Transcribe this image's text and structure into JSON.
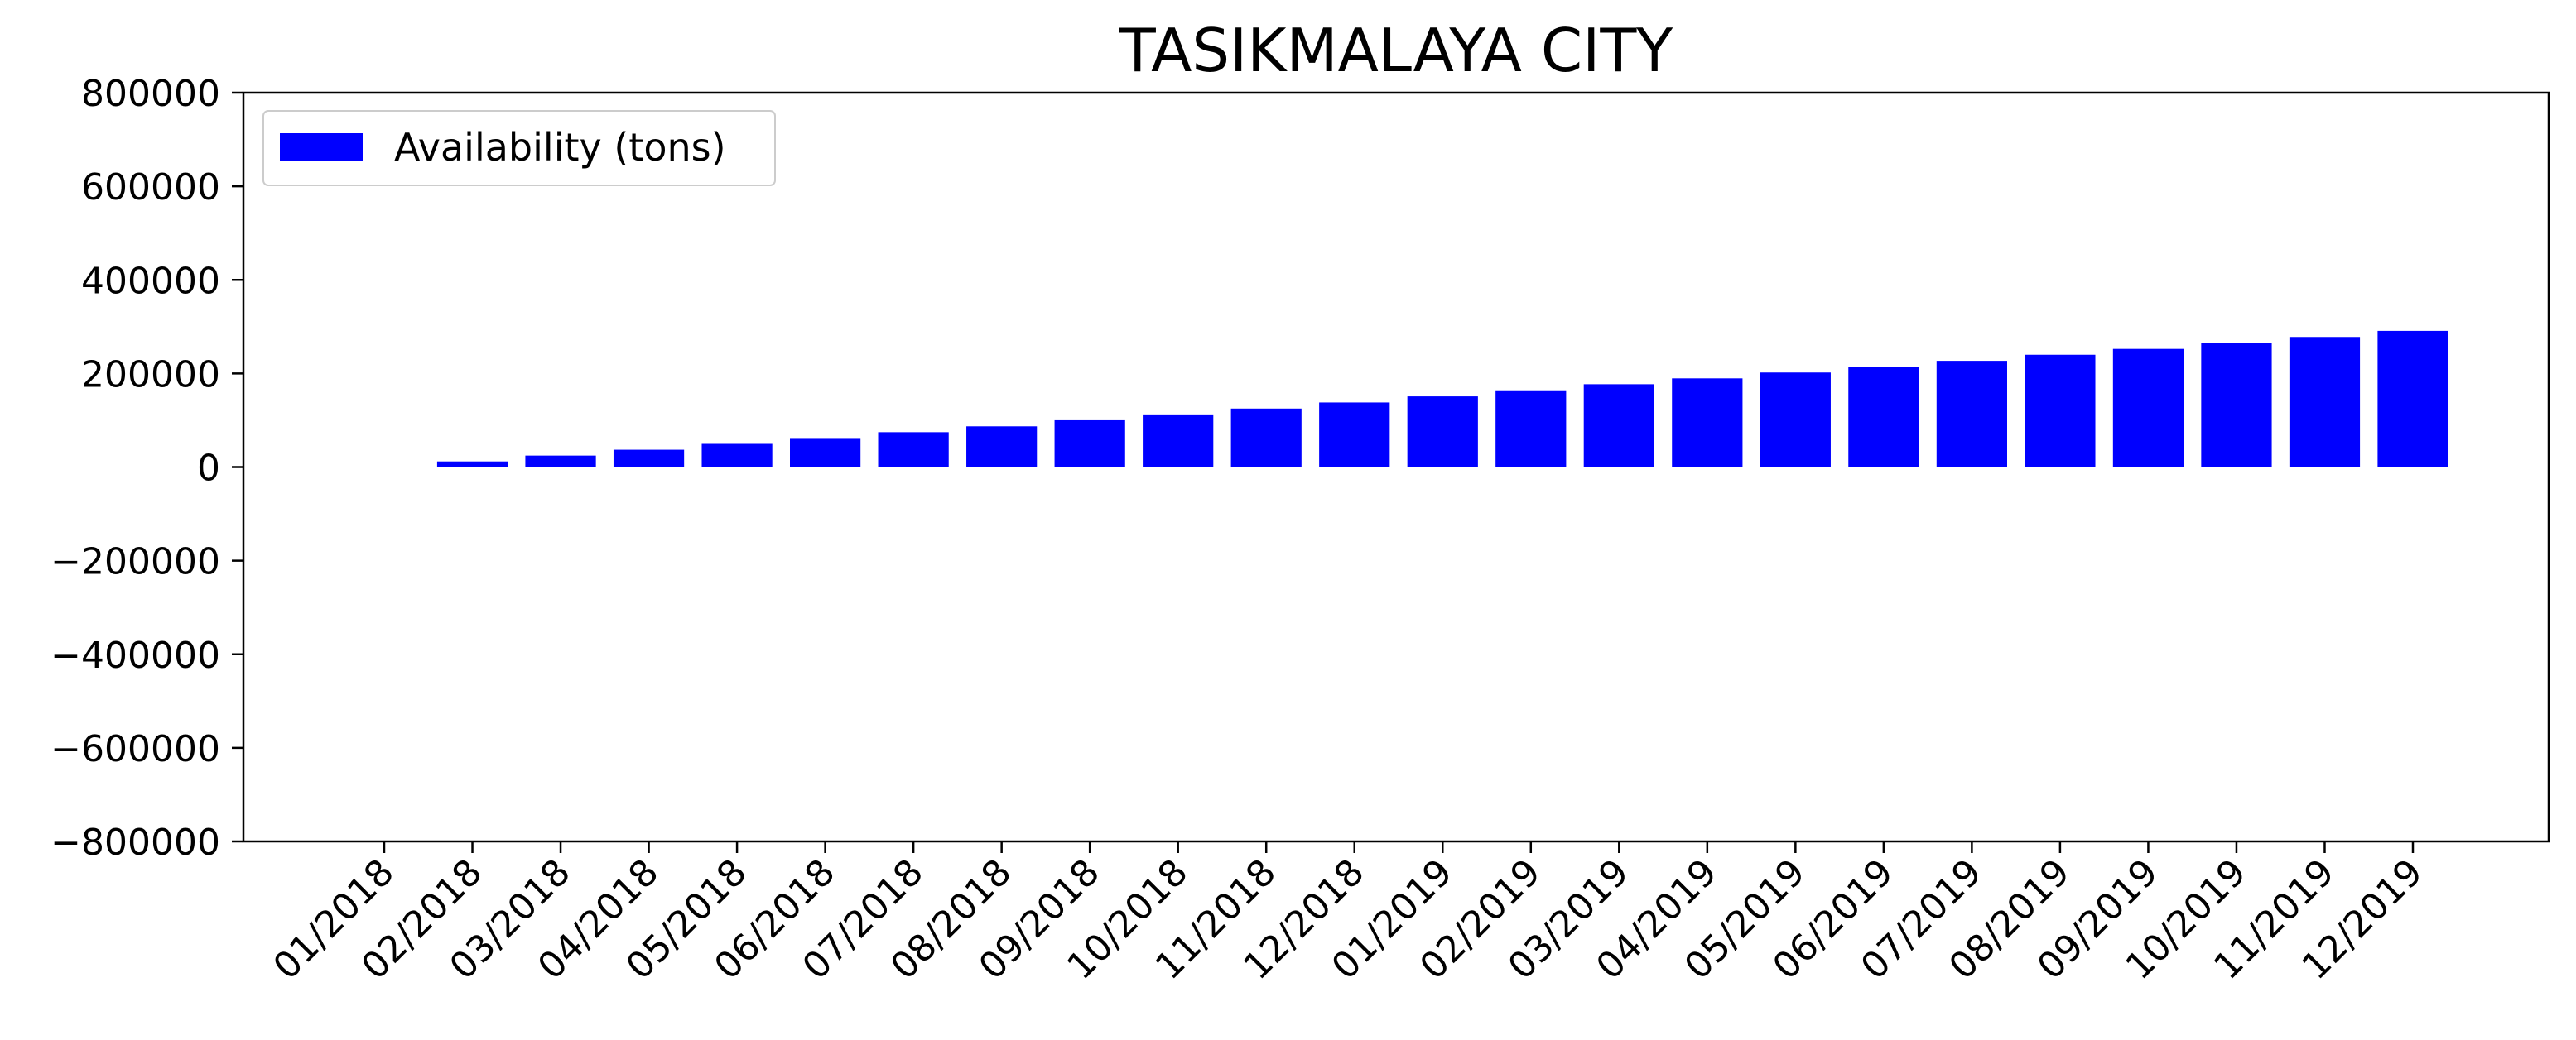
{
  "chart_data": {
    "type": "bar",
    "title": "TASIKMALAYA CITY",
    "xlabel": "",
    "ylabel": "",
    "categories": [
      "01/2018",
      "02/2018",
      "03/2018",
      "04/2018",
      "05/2018",
      "06/2018",
      "07/2018",
      "08/2018",
      "09/2018",
      "10/2018",
      "11/2018",
      "12/2018",
      "01/2019",
      "02/2019",
      "03/2019",
      "04/2019",
      "05/2019",
      "06/2019",
      "07/2019",
      "08/2019",
      "09/2019",
      "10/2019",
      "11/2019",
      "12/2019"
    ],
    "series": [
      {
        "name": "Availability (tons)",
        "color": "#0000ff",
        "values": [
          0,
          12000,
          24500,
          37000,
          49500,
          62000,
          74500,
          87000,
          100000,
          112500,
          125000,
          138000,
          151000,
          164000,
          177000,
          189500,
          202000,
          214500,
          227000,
          240000,
          252500,
          265000,
          278000,
          291000
        ]
      }
    ],
    "yticks": [
      800000,
      600000,
      400000,
      200000,
      0,
      -200000,
      -400000,
      -600000,
      -800000
    ],
    "ytick_labels": [
      "800000",
      "600000",
      "400000",
      "200000",
      "0",
      "−200000",
      "−400000",
      "−600000",
      "−800000"
    ],
    "ylim": [
      -800000,
      800000
    ],
    "grid": false,
    "legend_position": "top-left"
  }
}
